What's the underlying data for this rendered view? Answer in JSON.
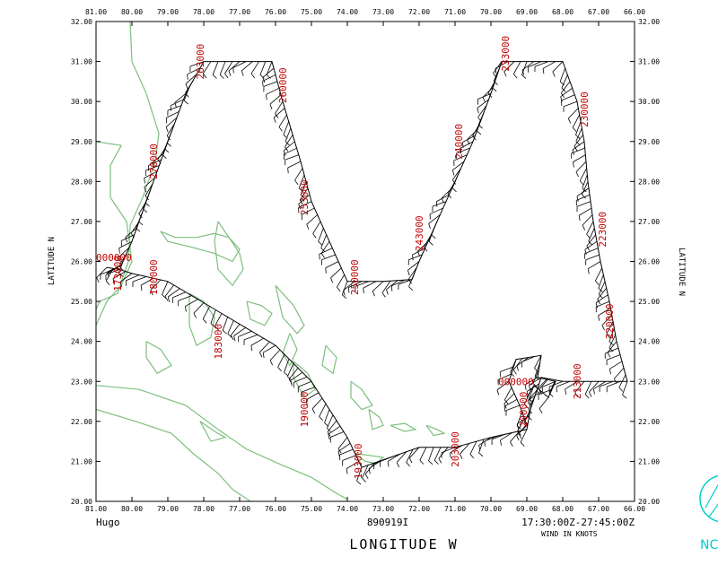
{
  "map": {
    "storm_name": "Hugo",
    "flight_id": "890919I",
    "time_range": "17:30:00Z-27:45:00Z",
    "wind_units": "WIND IN KNOTS",
    "x_axis_title": "LONGITUDE   W",
    "y_axis_title": "LATITUDE   N",
    "partial_logo_text": "NC",
    "x_ticks": [
      "81.00",
      "80.00",
      "79.00",
      "78.00",
      "77.00",
      "76.00",
      "75.00",
      "74.00",
      "73.00",
      "72.00",
      "71.00",
      "70.00",
      "69.00",
      "68.00",
      "67.00",
      "66.00"
    ],
    "y_ticks": [
      "20.00",
      "21.00",
      "22.00",
      "23.00",
      "24.00",
      "25.00",
      "26.00",
      "27.00",
      "28.00",
      "29.00",
      "30.00",
      "31.00",
      "32.00"
    ],
    "lon_range": [
      81,
      66
    ],
    "lat_range": [
      20,
      32
    ],
    "colors": {
      "track": "#000000",
      "coast": "#7dbf7d",
      "time_labels": "#c00000",
      "logo": "#00cccc"
    },
    "time_labels": [
      {
        "text": "263000",
        "lon": 78.1,
        "lat": 31.0
      },
      {
        "text": "260000",
        "lon": 75.8,
        "lat": 30.4
      },
      {
        "text": "270000",
        "lon": 79.4,
        "lat": 28.5
      },
      {
        "text": "253000",
        "lon": 75.2,
        "lat": 27.6
      },
      {
        "text": "250000",
        "lon": 73.8,
        "lat": 25.6
      },
      {
        "text": "243000",
        "lon": 72.0,
        "lat": 26.7
      },
      {
        "text": "240000",
        "lon": 70.9,
        "lat": 29.0
      },
      {
        "text": "233000",
        "lon": 69.6,
        "lat": 31.2
      },
      {
        "text": "230000",
        "lon": 67.4,
        "lat": 29.8
      },
      {
        "text": "223000",
        "lon": 66.9,
        "lat": 26.8
      },
      {
        "text": "220000",
        "lon": 66.7,
        "lat": 24.5
      },
      {
        "text": "213000",
        "lon": 67.6,
        "lat": 23.0
      },
      {
        "text": "000000",
        "lon": 69.8,
        "lat": 23.0,
        "horizontal": true
      },
      {
        "text": "200000",
        "lon": 69.1,
        "lat": 22.3
      },
      {
        "text": "203000",
        "lon": 71.0,
        "lat": 21.3
      },
      {
        "text": "193000",
        "lon": 73.7,
        "lat": 21.0
      },
      {
        "text": "190000",
        "lon": 75.2,
        "lat": 22.3
      },
      {
        "text": "183000",
        "lon": 77.6,
        "lat": 24.0
      },
      {
        "text": "180000",
        "lon": 79.4,
        "lat": 25.6
      },
      {
        "text": "000000",
        "lon": 81.0,
        "lat": 26.1,
        "horizontal": true
      },
      {
        "text": "173000",
        "lon": 80.4,
        "lat": 25.7
      }
    ],
    "flight_track": [
      [
        80.7,
        25.85
      ],
      [
        80.35,
        25.8
      ],
      [
        80.0,
        25.7
      ],
      [
        79.0,
        25.5
      ],
      [
        77.5,
        24.7
      ],
      [
        76.0,
        23.9
      ],
      [
        75.0,
        23.0
      ],
      [
        74.0,
        21.6
      ],
      [
        73.6,
        20.85
      ],
      [
        72.0,
        21.35
      ],
      [
        71.0,
        21.35
      ],
      [
        70.0,
        21.6
      ],
      [
        69.0,
        21.8
      ],
      [
        68.9,
        22.3
      ],
      [
        68.6,
        23.1
      ],
      [
        68.0,
        23.0
      ],
      [
        67.0,
        23.0
      ],
      [
        66.2,
        23.0
      ],
      [
        66.5,
        24.0
      ],
      [
        66.7,
        25.0
      ],
      [
        66.95,
        26.0
      ],
      [
        67.15,
        27.0
      ],
      [
        67.3,
        28.0
      ],
      [
        67.4,
        29.0
      ],
      [
        67.6,
        30.0
      ],
      [
        68.0,
        31.0
      ],
      [
        69.0,
        31.0
      ],
      [
        69.7,
        31.0
      ],
      [
        70.0,
        30.2
      ],
      [
        70.5,
        29.0
      ],
      [
        71.0,
        28.0
      ],
      [
        71.5,
        27.0
      ],
      [
        72.0,
        26.0
      ],
      [
        72.2,
        25.55
      ],
      [
        73.0,
        25.5
      ],
      [
        74.0,
        25.5
      ],
      [
        74.5,
        26.5
      ],
      [
        75.0,
        27.5
      ],
      [
        75.3,
        28.5
      ],
      [
        75.8,
        30.0
      ],
      [
        76.1,
        31.0
      ],
      [
        77.0,
        31.0
      ],
      [
        78.0,
        31.0
      ],
      [
        78.5,
        30.2
      ],
      [
        79.0,
        29.0
      ],
      [
        79.6,
        27.5
      ],
      [
        80.0,
        26.5
      ],
      [
        80.3,
        25.9
      ],
      [
        80.7,
        25.7
      ]
    ],
    "loop_track": [
      [
        69.0,
        21.9
      ],
      [
        69.2,
        22.4
      ],
      [
        69.5,
        23.0
      ],
      [
        69.3,
        23.55
      ],
      [
        68.6,
        23.65
      ],
      [
        68.7,
        23.1
      ],
      [
        68.2,
        23.0
      ],
      [
        68.4,
        22.6
      ],
      [
        68.8,
        22.9
      ],
      [
        69.0,
        22.6
      ]
    ],
    "coastlines": [
      [
        [
          80.05,
          32.0
        ],
        [
          80.0,
          31.0
        ],
        [
          79.6,
          30.2
        ],
        [
          79.25,
          29.2
        ],
        [
          79.35,
          28.5
        ],
        [
          79.7,
          27.6
        ],
        [
          80.05,
          26.9
        ],
        [
          80.1,
          26.0
        ],
        [
          80.4,
          25.2
        ],
        [
          80.9,
          25.0
        ],
        [
          81.0,
          24.8
        ]
      ],
      [
        [
          81.0,
          29.0
        ],
        [
          80.3,
          28.9
        ],
        [
          80.6,
          28.4
        ],
        [
          80.6,
          27.6
        ],
        [
          80.15,
          27.0
        ],
        [
          80.0,
          26.0
        ],
        [
          80.3,
          25.4
        ],
        [
          80.7,
          25.0
        ],
        [
          81.0,
          24.4
        ]
      ],
      [
        [
          81.0,
          22.9
        ],
        [
          79.8,
          22.8
        ],
        [
          78.5,
          22.4
        ],
        [
          77.6,
          21.8
        ],
        [
          76.8,
          21.3
        ],
        [
          75.8,
          20.9
        ],
        [
          75.0,
          20.6
        ],
        [
          74.3,
          20.2
        ],
        [
          74.0,
          20.05
        ]
      ],
      [
        [
          81.0,
          22.3
        ],
        [
          79.9,
          22.0
        ],
        [
          78.9,
          21.7
        ],
        [
          78.3,
          21.2
        ],
        [
          77.6,
          20.7
        ],
        [
          77.2,
          20.3
        ],
        [
          76.7,
          20.0
        ]
      ],
      [
        [
          79.2,
          26.75
        ],
        [
          78.8,
          26.6
        ],
        [
          78.2,
          26.6
        ],
        [
          77.7,
          26.7
        ],
        [
          77.3,
          26.6
        ],
        [
          77.0,
          26.3
        ],
        [
          77.2,
          26.0
        ],
        [
          77.7,
          26.2
        ],
        [
          78.3,
          26.35
        ],
        [
          79.0,
          26.5
        ],
        [
          79.2,
          26.75
        ]
      ],
      [
        [
          77.6,
          27.0
        ],
        [
          77.3,
          26.6
        ],
        [
          77.0,
          26.2
        ],
        [
          76.9,
          25.8
        ],
        [
          77.2,
          25.4
        ],
        [
          77.6,
          25.8
        ],
        [
          77.7,
          26.5
        ],
        [
          77.6,
          27.0
        ]
      ],
      [
        [
          76.8,
          25.0
        ],
        [
          76.4,
          24.9
        ],
        [
          76.1,
          24.7
        ],
        [
          76.3,
          24.4
        ],
        [
          76.7,
          24.55
        ],
        [
          76.8,
          25.0
        ]
      ],
      [
        [
          78.4,
          25.2
        ],
        [
          78.0,
          25.0
        ],
        [
          77.7,
          24.6
        ],
        [
          77.8,
          24.1
        ],
        [
          78.2,
          23.9
        ],
        [
          78.4,
          24.4
        ],
        [
          78.4,
          25.2
        ]
      ],
      [
        [
          79.6,
          24.0
        ],
        [
          79.2,
          23.8
        ],
        [
          78.9,
          23.4
        ],
        [
          79.3,
          23.2
        ],
        [
          79.6,
          23.6
        ],
        [
          79.6,
          24.0
        ]
      ],
      [
        [
          76.0,
          25.4
        ],
        [
          75.5,
          24.9
        ],
        [
          75.2,
          24.4
        ],
        [
          75.4,
          24.2
        ],
        [
          75.8,
          24.6
        ],
        [
          76.0,
          25.4
        ]
      ],
      [
        [
          75.6,
          24.2
        ],
        [
          75.4,
          23.8
        ],
        [
          75.6,
          23.4
        ],
        [
          75.8,
          23.7
        ],
        [
          75.6,
          24.2
        ]
      ],
      [
        [
          75.5,
          23.5
        ],
        [
          75.1,
          23.2
        ],
        [
          74.9,
          22.8
        ],
        [
          75.2,
          22.6
        ],
        [
          75.5,
          23.1
        ],
        [
          75.5,
          23.5
        ]
      ],
      [
        [
          74.6,
          23.9
        ],
        [
          74.3,
          23.6
        ],
        [
          74.4,
          23.2
        ],
        [
          74.7,
          23.4
        ],
        [
          74.6,
          23.9
        ]
      ],
      [
        [
          73.9,
          23.0
        ],
        [
          73.6,
          22.8
        ],
        [
          73.3,
          22.4
        ],
        [
          73.6,
          22.3
        ],
        [
          73.9,
          22.6
        ],
        [
          73.9,
          23.0
        ]
      ],
      [
        [
          73.4,
          22.3
        ],
        [
          73.1,
          22.1
        ],
        [
          73.0,
          21.9
        ],
        [
          73.3,
          21.8
        ],
        [
          73.4,
          22.3
        ]
      ],
      [
        [
          72.8,
          21.9
        ],
        [
          72.4,
          21.75
        ],
        [
          72.1,
          21.8
        ],
        [
          72.4,
          21.95
        ],
        [
          72.8,
          21.9
        ]
      ],
      [
        [
          71.8,
          21.9
        ],
        [
          71.5,
          21.8
        ],
        [
          71.3,
          21.7
        ],
        [
          71.6,
          21.65
        ],
        [
          71.8,
          21.9
        ]
      ],
      [
        [
          73.8,
          21.2
        ],
        [
          73.5,
          21.0
        ],
        [
          73.2,
          20.95
        ],
        [
          73.0,
          21.1
        ],
        [
          73.4,
          21.15
        ],
        [
          73.8,
          21.2
        ]
      ],
      [
        [
          78.1,
          22.0
        ],
        [
          77.7,
          21.75
        ],
        [
          77.4,
          21.6
        ],
        [
          77.8,
          21.5
        ],
        [
          78.1,
          22.0
        ]
      ]
    ]
  }
}
